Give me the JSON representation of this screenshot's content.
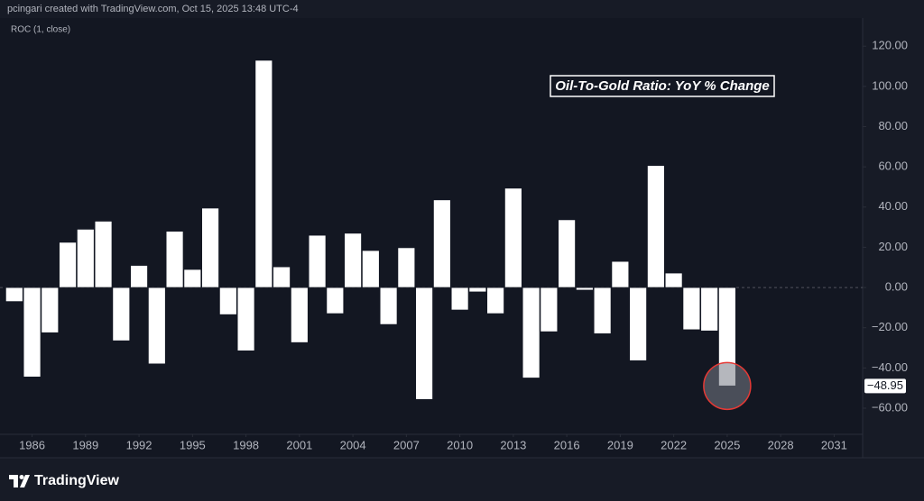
{
  "chart_data": {
    "type": "bar",
    "credit": "pcingari created with TradingView.com, Oct 15, 2025 13:48 UTC-4",
    "indicator": "ROC (1, close)",
    "annotation": "Oil-To-Gold Ratio: YoY % Change",
    "brand": "TradingView",
    "x": [
      1985,
      1986,
      1987,
      1988,
      1989,
      1990,
      1991,
      1992,
      1993,
      1994,
      1995,
      1996,
      1997,
      1998,
      1999,
      2000,
      2001,
      2002,
      2003,
      2004,
      2005,
      2006,
      2007,
      2008,
      2009,
      2010,
      2011,
      2012,
      2013,
      2014,
      2015,
      2016,
      2017,
      2018,
      2019,
      2020,
      2021,
      2022,
      2023,
      2024,
      2025
    ],
    "values": [
      -7,
      -44.5,
      -22.5,
      22.5,
      29,
      33,
      -26.5,
      11,
      -38,
      28,
      9,
      39.5,
      -13.5,
      -31.5,
      113,
      10.3,
      -27.4,
      26,
      -13,
      27,
      18.4,
      -18.4,
      19.8,
      -55.7,
      43.6,
      -11.2,
      -2.2,
      -13,
      49.4,
      -45,
      -22,
      33.7,
      -1.3,
      -23,
      13,
      -36.4,
      60.7,
      7.2,
      -21,
      -21.6,
      -48.95
    ],
    "value_labels": [
      null,
      null,
      null,
      null,
      null,
      null,
      null,
      null,
      null,
      null,
      null,
      null,
      null,
      null,
      null,
      null,
      null,
      null,
      null,
      null,
      null,
      null,
      null,
      null,
      null,
      null,
      null,
      null,
      null,
      null,
      null,
      null,
      null,
      null,
      null,
      null,
      null,
      null,
      null,
      null,
      "−48.95"
    ],
    "color": "#ffffff",
    "xlim": [
      1984.2,
      2032.6
    ],
    "xticks": [
      1986,
      1989,
      1992,
      1995,
      1998,
      2001,
      2004,
      2007,
      2010,
      2013,
      2016,
      2019,
      2022,
      2025,
      2028,
      2031
    ],
    "ylim": [
      -73,
      134
    ],
    "yticks": [
      {
        "value": 120,
        "label": "120.00"
      },
      {
        "value": 100,
        "label": "100.00"
      },
      {
        "value": 80,
        "label": "80.00"
      },
      {
        "value": 60,
        "label": "60.00"
      },
      {
        "value": 40,
        "label": "40.00"
      },
      {
        "value": 20,
        "label": "20.00"
      },
      {
        "value": 0,
        "label": "0.00"
      },
      {
        "value": -20,
        "label": "−20.00"
      },
      {
        "value": -40,
        "label": "−40.00"
      },
      {
        "value": -60,
        "label": "−60.00"
      }
    ],
    "zero_line": true
  }
}
